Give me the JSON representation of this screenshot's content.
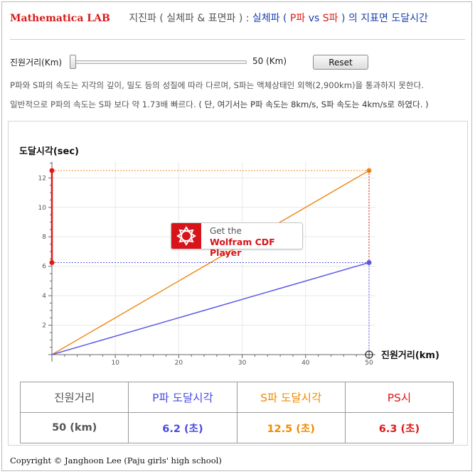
{
  "header": {
    "brand": "Mathematica LAB",
    "subtitle": "지진파 ( 실체파 & 표면파 ) :",
    "title_a": "실체파 (",
    "title_p": "P파",
    "title_vs": "vs",
    "title_s": "S파",
    "title_b": ") 의 지표면 도달시간"
  },
  "controls": {
    "distance_label": "진원거리(Km)",
    "distance_value": "50 (Km)",
    "slider_fraction": 0.0,
    "reset_label": "Reset"
  },
  "info": {
    "line1": "P파와 S파의 속도는 지각의 깊이, 밀도 등의 성질에 따라 다르며, S파는 액체상태인 외핵(2,900km)을 통과하지 못한다.",
    "line2_a": "일반적으로 P파의 속도는 S파 보다 약 1.73배 빠르다.",
    "line2_b": "( 단, 여기서는 P파 속도는 8km/s, S파 속도는 4km/s로 하였다. )"
  },
  "cdf_badge": {
    "line1": "Get the",
    "line2": "Wolfram CDF Player"
  },
  "chart_data": {
    "type": "line",
    "ylabel": "도달시각(sec)",
    "xlabel": "진원거리(km)",
    "xlim": [
      0,
      51
    ],
    "ylim": [
      0,
      13
    ],
    "xticks": [
      10,
      20,
      30,
      40,
      50
    ],
    "yticks": [
      2,
      4,
      6,
      8,
      10,
      12
    ],
    "grid": true,
    "series": [
      {
        "color": "#f08a1c",
        "x": [
          0,
          50
        ],
        "y": [
          0,
          12.5
        ]
      },
      {
        "color": "#5a5ae6",
        "x": [
          0,
          50
        ],
        "y": [
          0,
          6.25
        ]
      }
    ],
    "ps_interval": {
      "color": "#e01818",
      "x": 0,
      "y_from": 6.25,
      "y_to": 12.5
    }
  },
  "table": {
    "headers": [
      "진원거리",
      "P파 도달시각",
      "S파 도달시각",
      "PS시"
    ],
    "values": [
      "50 (km)",
      "6.2 (초)",
      "12.5 (초)",
      "6.3 (초)"
    ]
  },
  "copyright": "Copyright © Janghoon Lee (Paju girls' high school)"
}
